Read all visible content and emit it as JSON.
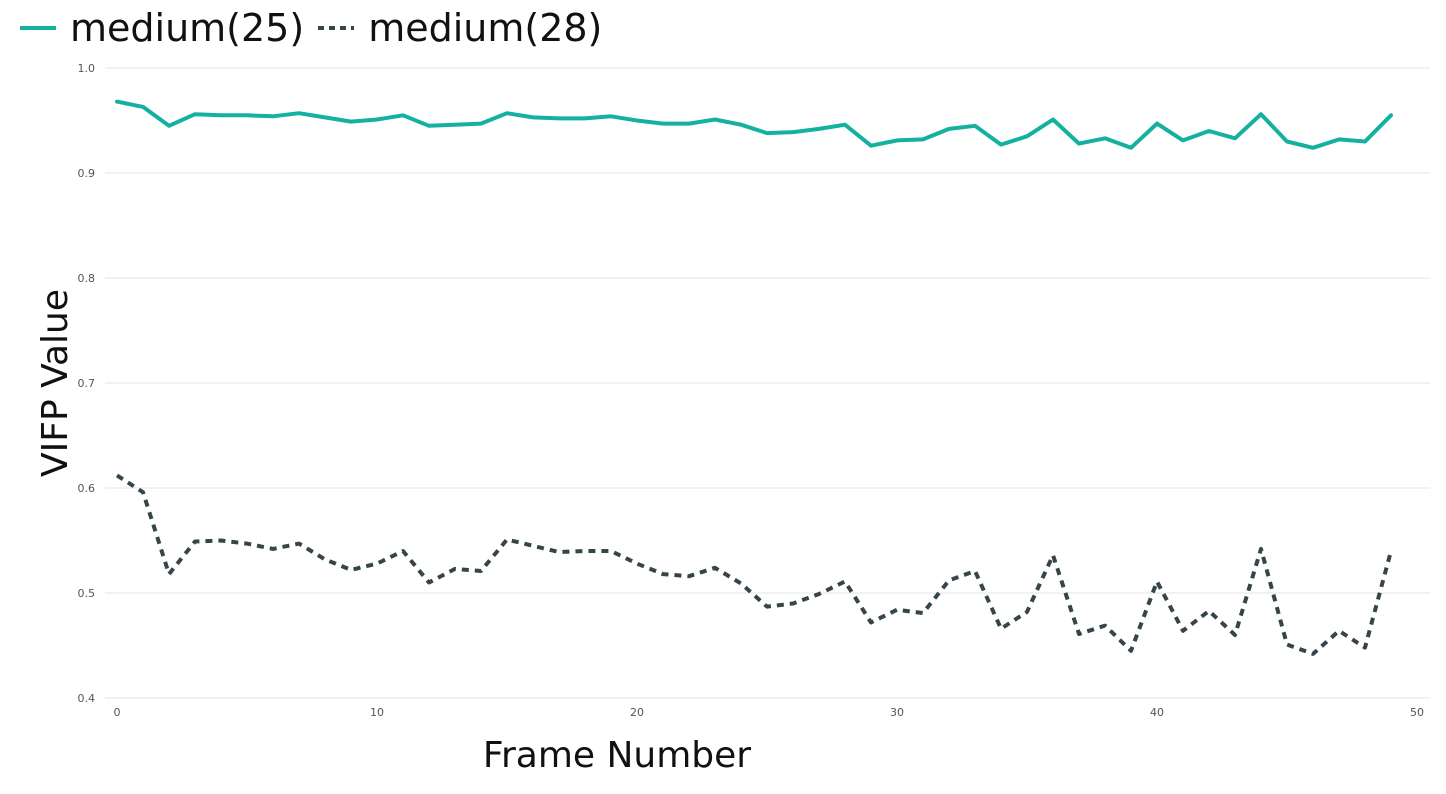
{
  "chart_data": {
    "type": "line",
    "xlabel": "Frame Number",
    "ylabel": "VIFP Value",
    "xlim": [
      0,
      50
    ],
    "ylim": [
      0.4,
      1.0
    ],
    "xticks": [
      0,
      10,
      20,
      30,
      40,
      50
    ],
    "yticks": [
      0.4,
      0.5,
      0.6,
      0.7,
      0.8,
      0.9,
      1.0
    ],
    "grid": "horizontal",
    "legend_position": "top-left",
    "series": [
      {
        "name": "medium(25)",
        "color": "#14b1a1",
        "style": "solid",
        "x": [
          0,
          1,
          2,
          3,
          4,
          5,
          6,
          7,
          8,
          9,
          10,
          11,
          12,
          13,
          14,
          15,
          16,
          17,
          18,
          19,
          20,
          21,
          22,
          23,
          24,
          25,
          26,
          27,
          28,
          29,
          30,
          31,
          32,
          33,
          34,
          35,
          36,
          37,
          38,
          39,
          40,
          41,
          42,
          43,
          44,
          45,
          46,
          47,
          48,
          49
        ],
        "values": [
          0.968,
          0.963,
          0.945,
          0.956,
          0.955,
          0.955,
          0.954,
          0.957,
          0.953,
          0.949,
          0.951,
          0.955,
          0.945,
          0.946,
          0.947,
          0.957,
          0.953,
          0.952,
          0.952,
          0.954,
          0.95,
          0.947,
          0.947,
          0.951,
          0.946,
          0.938,
          0.939,
          0.942,
          0.946,
          0.926,
          0.931,
          0.932,
          0.942,
          0.945,
          0.927,
          0.935,
          0.951,
          0.928,
          0.933,
          0.924,
          0.947,
          0.931,
          0.94,
          0.933,
          0.956,
          0.93,
          0.924,
          0.932,
          0.93,
          0.955
        ]
      },
      {
        "name": "medium(28)",
        "color": "#36454a",
        "style": "dashed",
        "x": [
          0,
          1,
          2,
          3,
          4,
          5,
          6,
          7,
          8,
          9,
          10,
          11,
          12,
          13,
          14,
          15,
          16,
          17,
          18,
          19,
          20,
          21,
          22,
          23,
          24,
          25,
          26,
          27,
          28,
          29,
          30,
          31,
          32,
          33,
          34,
          35,
          36,
          37,
          38,
          39,
          40,
          41,
          42,
          43,
          44,
          45,
          46,
          47,
          48,
          49
        ],
        "values": [
          0.612,
          0.596,
          0.518,
          0.549,
          0.55,
          0.547,
          0.542,
          0.547,
          0.532,
          0.522,
          0.528,
          0.54,
          0.51,
          0.523,
          0.521,
          0.551,
          0.545,
          0.539,
          0.54,
          0.54,
          0.528,
          0.518,
          0.516,
          0.524,
          0.509,
          0.487,
          0.49,
          0.499,
          0.511,
          0.472,
          0.484,
          0.481,
          0.512,
          0.521,
          0.466,
          0.482,
          0.536,
          0.461,
          0.469,
          0.445,
          0.511,
          0.464,
          0.483,
          0.46,
          0.542,
          0.451,
          0.442,
          0.464,
          0.448,
          0.54
        ]
      }
    ]
  }
}
